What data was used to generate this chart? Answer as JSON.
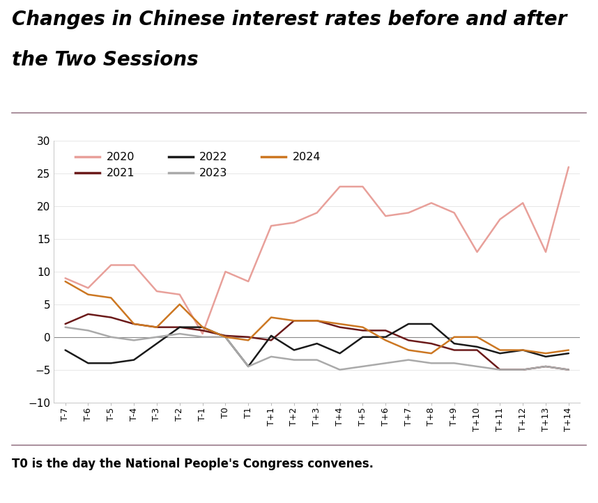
{
  "title_line1": "Changes in Chinese interest rates before and after",
  "title_line2": "the Two Sessions",
  "footnote": "T0 is the day the National People's Congress convenes.",
  "x_labels": [
    "T-7",
    "T-6",
    "T-5",
    "T-4",
    "T-3",
    "T-2",
    "T-1",
    "T0",
    "T1",
    "T+1",
    "T+2",
    "T+3",
    "T+4",
    "T+5",
    "T+6",
    "T+7",
    "T+8",
    "T+9",
    "T+10",
    "T+11",
    "T+12",
    "T+13",
    "T+14"
  ],
  "ylim": [
    -10,
    30
  ],
  "yticks": [
    -10,
    -5,
    0,
    5,
    10,
    15,
    20,
    25,
    30
  ],
  "series": {
    "2020": {
      "color": "#E8A09A",
      "values": [
        9.0,
        7.5,
        11.0,
        11.0,
        7.0,
        6.5,
        0.5,
        10.0,
        8.5,
        17.0,
        17.5,
        19.0,
        23.0,
        23.0,
        18.5,
        19.0,
        20.5,
        19.0,
        13.0,
        18.0,
        20.5,
        13.0,
        26.0
      ]
    },
    "2021": {
      "color": "#6B1A1A",
      "values": [
        2.0,
        3.5,
        3.0,
        2.0,
        1.5,
        1.5,
        1.0,
        0.2,
        0.0,
        -0.5,
        2.5,
        2.5,
        1.5,
        1.0,
        1.0,
        -0.5,
        -1.0,
        -2.0,
        -2.0,
        -5.0,
        -5.0,
        -4.5,
        -5.0
      ]
    },
    "2022": {
      "color": "#1A1A1A",
      "values": [
        -2.0,
        -4.0,
        -4.0,
        -3.5,
        -1.0,
        1.5,
        1.5,
        0.0,
        -4.5,
        0.2,
        -2.0,
        -1.0,
        -2.5,
        0.0,
        0.0,
        2.0,
        2.0,
        -1.0,
        -1.5,
        -2.5,
        -2.0,
        -3.0,
        -2.5
      ]
    },
    "2023": {
      "color": "#AAAAAA",
      "values": [
        1.5,
        1.0,
        0.0,
        -0.5,
        0.0,
        0.5,
        0.0,
        0.0,
        -4.5,
        -3.0,
        -3.5,
        -3.5,
        -5.0,
        -4.5,
        -4.0,
        -3.5,
        -4.0,
        -4.0,
        -4.5,
        -5.0,
        -5.0,
        -4.5,
        -5.0
      ]
    },
    "2024": {
      "color": "#CC7722",
      "values": [
        8.5,
        6.5,
        6.0,
        2.0,
        1.5,
        5.0,
        1.5,
        0.0,
        -0.5,
        3.0,
        2.5,
        2.5,
        2.0,
        1.5,
        -0.5,
        -2.0,
        -2.5,
        0.0,
        0.0,
        -2.0,
        -2.0,
        -2.5,
        -2.0
      ]
    }
  },
  "legend_order": [
    "2020",
    "2021",
    "2022",
    "2023",
    "2024"
  ],
  "background_color": "#FFFFFF",
  "title_color": "#000000",
  "separator_color": "#9B7B8B",
  "title_fontsize": 20,
  "footnote_fontsize": 12,
  "line_width": 1.8
}
